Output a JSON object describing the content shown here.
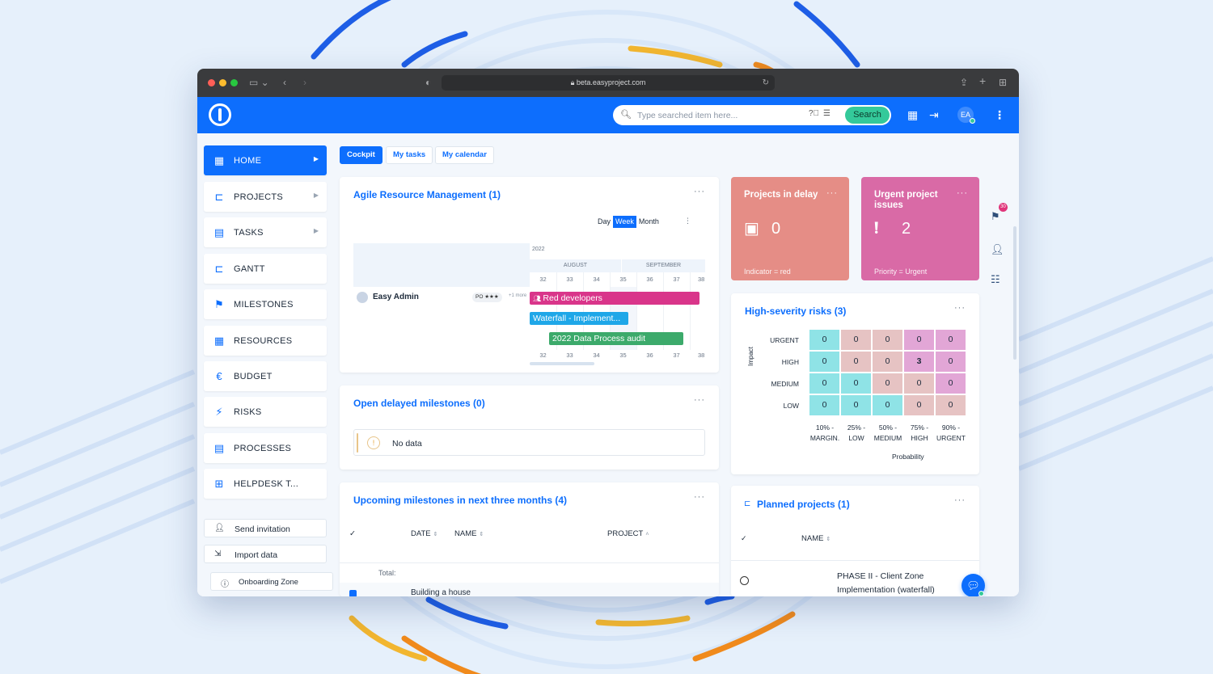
{
  "browser": {
    "url": "beta.easyproject.com"
  },
  "header": {
    "search_placeholder": "Type searched item here...",
    "search_button": "Search",
    "avatar_initials": "EA"
  },
  "sidebar": {
    "items": [
      {
        "label": "HOME",
        "icon": "dashboard-icon",
        "active": true,
        "chevron": true
      },
      {
        "label": "PROJECTS",
        "icon": "hierarchy-icon",
        "chevron": true
      },
      {
        "label": "TASKS",
        "icon": "clipboard-icon",
        "chevron": true
      },
      {
        "label": "GANTT",
        "icon": "gantt-icon"
      },
      {
        "label": "MILESTONES",
        "icon": "flag-icon"
      },
      {
        "label": "RESOURCES",
        "icon": "grid-icon"
      },
      {
        "label": "BUDGET",
        "icon": "euro-icon"
      },
      {
        "label": "RISKS",
        "icon": "lightning-icon"
      },
      {
        "label": "PROCESSES",
        "icon": "processes-icon"
      },
      {
        "label": "HELPDESK T...",
        "icon": "plus-box-icon"
      }
    ],
    "send_invitation": "Send invitation",
    "import_data": "Import data",
    "onboarding": "Onboarding Zone"
  },
  "tabs": [
    "Cockpit",
    "My tasks",
    "My calendar"
  ],
  "agile": {
    "title": "Agile Resource Management (1)",
    "ranges": [
      "Day",
      "Week",
      "Month"
    ],
    "active_range": "Week",
    "year": "2022",
    "months": [
      "AUGUST",
      "SEPTEMBER"
    ],
    "weeks": [
      "32",
      "33",
      "34",
      "35",
      "36",
      "37",
      "38"
    ],
    "user": "Easy Admin",
    "user_badge": "PO ★★★",
    "user_more": "+1 more",
    "bars": [
      {
        "label": "Red developers",
        "color": "#d9358a"
      },
      {
        "label": "Waterfall - Implement...",
        "color": "#1fa7e8"
      },
      {
        "label": "2022 Data Process audit",
        "color": "#3caa6b"
      }
    ]
  },
  "delayed": {
    "title": "Open delayed milestones (0)",
    "empty_text": "No data"
  },
  "upcoming": {
    "title": "Upcoming milestones in next three months (4)",
    "columns": [
      "DATE",
      "NAME",
      "PROJECT"
    ],
    "total_label": "Total:",
    "first_row": "Building a house"
  },
  "kpis": [
    {
      "title": "Projects in delay",
      "value": "0",
      "subtitle": "Indicator = red",
      "color": "#e58d86",
      "icon": "calendar-icon"
    },
    {
      "title": "Urgent project issues",
      "value": "2",
      "subtitle": "Priority = Urgent",
      "color": "#d96aa6",
      "icon": "exclamation-circle-icon"
    }
  ],
  "risks": {
    "title": "High-severity risks (3)",
    "impact_label": "Impact",
    "probability_label": "Probability",
    "rows": [
      "URGENT",
      "HIGH",
      "MEDIUM",
      "LOW"
    ],
    "cols": [
      "10% - MARGINAL",
      "25% - LOW",
      "50% - MEDIUM",
      "75% - HIGH",
      "90% - URGENT"
    ],
    "col_lines": [
      [
        "10% -",
        "MARGIN."
      ],
      [
        "25% -",
        "LOW"
      ],
      [
        "50% -",
        "MEDIUM"
      ],
      [
        "75% -",
        "HIGH"
      ],
      [
        "90% -",
        "URGENT"
      ]
    ],
    "values": [
      [
        0,
        0,
        0,
        0,
        0
      ],
      [
        0,
        0,
        0,
        3,
        0
      ],
      [
        0,
        0,
        0,
        0,
        0
      ],
      [
        0,
        0,
        0,
        0,
        0
      ]
    ],
    "colors": [
      [
        "#8fe3e6",
        "#e6c3c3",
        "#e6c3c3",
        "#e2a6d6",
        "#e2a6d6"
      ],
      [
        "#8fe3e6",
        "#e6c3c3",
        "#e6c3c3",
        "#e2a6d6",
        "#e2a6d6"
      ],
      [
        "#8fe3e6",
        "#8fe3e6",
        "#e6c3c3",
        "#e6c3c3",
        "#e2a6d6"
      ],
      [
        "#8fe3e6",
        "#8fe3e6",
        "#8fe3e6",
        "#e6c3c3",
        "#e6c3c3"
      ]
    ]
  },
  "planned": {
    "title": "Planned projects (1)",
    "column": "NAME",
    "project": "PHASE II - Client Zone Implementation (waterfall)"
  },
  "notifications_count": "30",
  "colors": {
    "primary": "#0d6efd",
    "accent": "#34c99a"
  }
}
